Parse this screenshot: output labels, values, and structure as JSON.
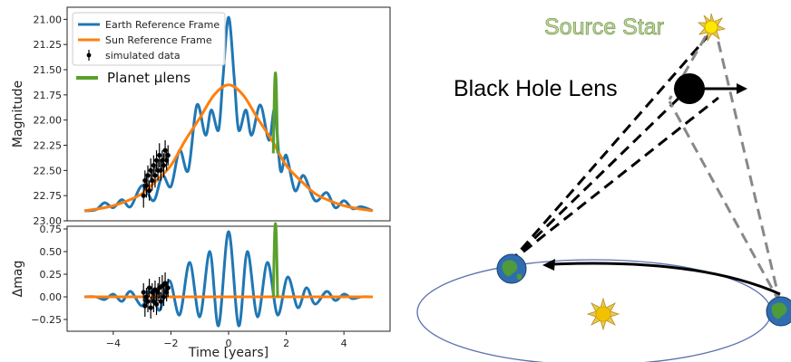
{
  "chart_data": [
    {
      "type": "line",
      "ylabel": "Magnitude",
      "xlabel": "",
      "xlim": [
        -5.6,
        5.6
      ],
      "ylim": [
        23.0,
        20.88
      ],
      "y_inverted": true,
      "xticks": [
        -4,
        -2,
        0,
        2,
        4
      ],
      "yticks": [
        21.0,
        21.25,
        21.5,
        21.75,
        22.0,
        22.25,
        22.5,
        22.75,
        23.0
      ],
      "ytick_labels": [
        "21.00",
        "21.25",
        "21.50",
        "21.75",
        "22.00",
        "22.25",
        "22.50",
        "22.75",
        "23.00"
      ],
      "legend": [
        {
          "label": "Earth Reference Frame",
          "color": "#1f77b4",
          "kind": "line"
        },
        {
          "label": "Sun Reference Frame",
          "color": "#ff7f0e",
          "kind": "line"
        },
        {
          "label": "simulated data",
          "color": "#000000",
          "kind": "errorbar"
        },
        {
          "label": "Planet μlens",
          "color": "#5aa02c",
          "kind": "line"
        }
      ],
      "series": [
        {
          "name": "Earth Reference Frame",
          "color": "#1f77b4",
          "x": [
            -5.0,
            -4.6,
            -4.3,
            -4.0,
            -3.7,
            -3.4,
            -3.0,
            -2.6,
            -2.3,
            -2.0,
            -1.7,
            -1.4,
            -1.1,
            -0.8,
            -0.6,
            -0.35,
            -0.2,
            0.0,
            0.2,
            0.35,
            0.6,
            0.8,
            1.1,
            1.4,
            1.6,
            1.8,
            2.0,
            2.3,
            2.6,
            3.0,
            3.4,
            3.7,
            4.0,
            4.3,
            4.6,
            5.0
          ],
          "y": [
            22.9,
            22.89,
            22.82,
            22.87,
            22.79,
            22.86,
            22.65,
            22.8,
            22.55,
            22.66,
            22.3,
            22.5,
            21.85,
            22.15,
            21.9,
            22.1,
            21.6,
            20.98,
            21.6,
            22.1,
            21.9,
            22.15,
            21.85,
            22.2,
            21.9,
            22.5,
            22.35,
            22.7,
            22.55,
            22.8,
            22.72,
            22.87,
            22.8,
            22.88,
            22.86,
            22.9
          ]
        },
        {
          "name": "Sun Reference Frame",
          "color": "#ff7f0e",
          "x": [
            -5.0,
            -4.5,
            -4.0,
            -3.5,
            -3.0,
            -2.5,
            -2.0,
            -1.5,
            -1.0,
            -0.5,
            0.0,
            0.5,
            1.0,
            1.5,
            2.0,
            2.5,
            3.0,
            3.5,
            4.0,
            4.5,
            5.0
          ],
          "y": [
            22.9,
            22.88,
            22.85,
            22.8,
            22.73,
            22.6,
            22.45,
            22.2,
            21.98,
            21.75,
            21.65,
            21.75,
            21.98,
            22.2,
            22.45,
            22.6,
            22.73,
            22.8,
            22.85,
            22.88,
            22.9
          ]
        },
        {
          "name": "Planet μlens",
          "color": "#5aa02c",
          "x": [
            1.55,
            1.6,
            1.65,
            1.7
          ],
          "y": [
            22.33,
            21.62,
            21.62,
            22.33
          ]
        },
        {
          "name": "simulated data",
          "color": "#000000",
          "kind": "errorbar",
          "x": [
            -2.95,
            -2.9,
            -2.85,
            -2.8,
            -2.75,
            -2.7,
            -2.65,
            -2.6,
            -2.55,
            -2.5,
            -2.45,
            -2.4,
            -2.35,
            -2.3,
            -2.25,
            -2.2,
            -2.15,
            -2.1
          ],
          "y": [
            22.75,
            22.6,
            22.65,
            22.55,
            22.7,
            22.5,
            22.6,
            22.45,
            22.55,
            22.4,
            22.5,
            22.35,
            22.5,
            22.4,
            22.45,
            22.3,
            22.4,
            22.35
          ],
          "err": [
            0.12,
            0.1,
            0.12,
            0.1,
            0.1,
            0.12,
            0.1,
            0.1,
            0.12,
            0.1,
            0.1,
            0.12,
            0.1,
            0.1,
            0.12,
            0.1,
            0.1,
            0.1
          ]
        }
      ]
    },
    {
      "type": "line",
      "ylabel": "Δmag",
      "xlabel": "Time [years]",
      "xlim": [
        -5.6,
        5.6
      ],
      "ylim": [
        -0.38,
        0.78
      ],
      "xticks": [
        -4,
        -2,
        0,
        2,
        4
      ],
      "xtick_labels": [
        "−4",
        "−2",
        "0",
        "2",
        "4"
      ],
      "yticks": [
        -0.25,
        0.0,
        0.25,
        0.5,
        0.75
      ],
      "ytick_labels": [
        "−0.25",
        "0.00",
        "0.25",
        "0.50",
        "0.75"
      ],
      "series": [
        {
          "name": "Earth Reference Frame",
          "color": "#1f77b4",
          "x": [
            -5.0,
            -4.6,
            -4.3,
            -4.0,
            -3.7,
            -3.4,
            -3.0,
            -2.7,
            -2.4,
            -2.05,
            -1.7,
            -1.35,
            -1.0,
            -0.65,
            -0.35,
            0.0,
            0.35,
            0.65,
            1.0,
            1.35,
            1.7,
            2.05,
            2.4,
            2.7,
            3.0,
            3.4,
            3.7,
            4.0,
            4.3,
            4.6,
            5.0
          ],
          "y": [
            0.0,
            0.0,
            -0.03,
            0.03,
            -0.05,
            0.06,
            -0.1,
            0.1,
            -0.15,
            0.18,
            -0.2,
            0.38,
            -0.22,
            0.5,
            -0.32,
            0.72,
            -0.32,
            0.5,
            -0.22,
            0.38,
            -0.2,
            0.22,
            -0.12,
            0.1,
            -0.08,
            0.06,
            -0.04,
            0.03,
            -0.02,
            0.0,
            0.0
          ]
        },
        {
          "name": "Sun Reference Frame",
          "color": "#ff7f0e",
          "x": [
            -5.0,
            5.0
          ],
          "y": [
            0.0,
            0.0
          ]
        },
        {
          "name": "Planet μlens",
          "color": "#5aa02c",
          "x": [
            1.55,
            1.6,
            1.65,
            1.7
          ],
          "y": [
            0.0,
            0.72,
            0.72,
            0.0
          ]
        },
        {
          "name": "simulated data",
          "color": "#000000",
          "kind": "errorbar",
          "x": [
            -2.95,
            -2.9,
            -2.85,
            -2.8,
            -2.75,
            -2.7,
            -2.65,
            -2.6,
            -2.55,
            -2.5,
            -2.45,
            -2.4,
            -2.35,
            -2.3,
            -2.25,
            -2.2,
            -2.15,
            -2.1
          ],
          "y": [
            0.05,
            -0.1,
            0.0,
            -0.05,
            0.1,
            -0.12,
            0.05,
            -0.05,
            0.08,
            -0.08,
            0.05,
            0.1,
            -0.05,
            0.12,
            0.0,
            0.15,
            0.05,
            0.1
          ],
          "err": [
            0.1,
            0.12,
            0.1,
            0.12,
            0.1,
            0.12,
            0.1,
            0.12,
            0.1,
            0.12,
            0.1,
            0.12,
            0.1,
            0.12,
            0.1,
            0.12,
            0.1,
            0.1
          ]
        }
      ]
    }
  ],
  "diagram": {
    "source_label": "Source Star",
    "lens_label": "Black Hole Lens",
    "colors": {
      "source_label": "#c5dba0",
      "source_label_stroke": "#7a9a55",
      "sun": "#f2c200",
      "earth": "#2f6db0",
      "orbit": "#5a6fb0"
    },
    "icons": [
      "star-icon",
      "black-hole-icon",
      "sun-icon",
      "earth-icon"
    ]
  }
}
